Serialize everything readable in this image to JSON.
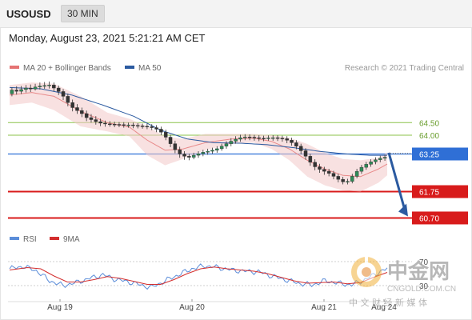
{
  "header": {
    "symbol": "USOUSD",
    "timeframe": "30 MIN"
  },
  "subheader": {
    "datetime": "Monday, August 23, 2021 5:21:21 AM CET"
  },
  "legend": {
    "bollinger": {
      "label": "MA 20 + Bollinger Bands",
      "color": "#e57373"
    },
    "ma50": {
      "label": "MA 50",
      "color": "#2b5aa0"
    },
    "credit": "Research © 2021 Trading Central"
  },
  "rsi_legend": {
    "rsi": {
      "label": "RSI",
      "color": "#5b8dd9"
    },
    "ma9": {
      "label": "9MA",
      "color": "#d32f2f"
    }
  },
  "watermark": {
    "name": "中金网",
    "url": "CNGOLD.COM.CN",
    "tagline": "中 文 财 经 新 媒 体"
  },
  "chart_data": {
    "type": "candlestick",
    "symbol": "USOUSD",
    "timeframe": "30 MIN",
    "x_labels": [
      "Aug 19",
      "Aug 20",
      "Aug 21",
      "Aug 24"
    ],
    "ylim": [
      60.3,
      66.2
    ],
    "levels": [
      {
        "value": 64.5,
        "label": "64.50",
        "kind": "resistance",
        "color": "#8bc34a"
      },
      {
        "value": 64.0,
        "label": "64.00",
        "kind": "resistance",
        "color": "#8bc34a"
      },
      {
        "value": 63.25,
        "label": "63.25",
        "kind": "pivot",
        "color": "#2f6fd6"
      },
      {
        "value": 61.75,
        "label": "61.75",
        "kind": "support",
        "color": "#d81b1b"
      },
      {
        "value": 60.7,
        "label": "60.70",
        "kind": "support",
        "color": "#d81b1b"
      }
    ],
    "price_anchors": [
      [
        0,
        65.8
      ],
      [
        5,
        65.75
      ],
      [
        10,
        65.9
      ],
      [
        14,
        66.0
      ],
      [
        19,
        65.7
      ],
      [
        24,
        65.1
      ],
      [
        31,
        64.6
      ],
      [
        38,
        64.45
      ],
      [
        44,
        64.4
      ],
      [
        49,
        64.35
      ],
      [
        54,
        64.2
      ],
      [
        59,
        63.4
      ],
      [
        64,
        63.1
      ],
      [
        70,
        63.35
      ],
      [
        76,
        63.4
      ],
      [
        82,
        63.6
      ],
      [
        86,
        63.8
      ],
      [
        92,
        63.95
      ],
      [
        100,
        63.85
      ],
      [
        106,
        63.9
      ],
      [
        112,
        63.85
      ],
      [
        118,
        63.7
      ],
      [
        124,
        63.45
      ],
      [
        128,
        63.2
      ],
      [
        134,
        62.8
      ],
      [
        140,
        62.6
      ],
      [
        146,
        62.45
      ],
      [
        150,
        62.25
      ],
      [
        154,
        62.1
      ],
      [
        158,
        62.45
      ],
      [
        162,
        62.7
      ],
      [
        166,
        62.9
      ],
      [
        170,
        63.1
      ]
    ],
    "candles": [
      [
        65.65,
        65.8,
        65.9,
        65.55
      ],
      [
        65.8,
        65.75,
        65.95,
        65.62
      ],
      [
        65.75,
        65.82,
        65.96,
        65.64
      ],
      [
        65.82,
        65.88,
        66.0,
        65.7
      ],
      [
        65.88,
        65.84,
        66.02,
        65.72
      ],
      [
        65.84,
        65.92,
        66.05,
        65.78
      ],
      [
        65.92,
        65.96,
        66.1,
        65.82
      ],
      [
        65.96,
        65.98,
        66.12,
        65.85
      ],
      [
        65.98,
        66.0,
        66.14,
        65.86
      ],
      [
        66.0,
        65.88,
        66.1,
        65.75
      ],
      [
        65.88,
        65.74,
        65.98,
        65.6
      ],
      [
        65.74,
        65.55,
        65.84,
        65.4
      ],
      [
        65.55,
        65.3,
        65.66,
        65.15
      ],
      [
        65.3,
        65.1,
        65.42,
        64.95
      ],
      [
        65.1,
        64.98,
        65.24,
        64.85
      ],
      [
        64.98,
        64.86,
        65.1,
        64.72
      ],
      [
        64.86,
        64.7,
        64.98,
        64.56
      ],
      [
        64.7,
        64.62,
        64.84,
        64.5
      ],
      [
        64.62,
        64.54,
        64.76,
        64.42
      ],
      [
        64.54,
        64.48,
        64.66,
        64.36
      ],
      [
        64.48,
        64.45,
        64.58,
        64.34
      ],
      [
        64.45,
        64.44,
        64.56,
        64.34
      ],
      [
        64.44,
        64.43,
        64.54,
        64.32
      ],
      [
        64.43,
        64.42,
        64.52,
        64.32
      ],
      [
        64.42,
        64.4,
        64.52,
        64.3
      ],
      [
        64.4,
        64.41,
        64.5,
        64.3
      ],
      [
        64.41,
        64.39,
        64.5,
        64.28
      ],
      [
        64.39,
        64.37,
        64.48,
        64.27
      ],
      [
        64.37,
        64.36,
        64.46,
        64.26
      ],
      [
        64.36,
        64.34,
        64.46,
        64.24
      ],
      [
        64.34,
        64.3,
        64.44,
        64.2
      ],
      [
        64.3,
        64.24,
        64.4,
        64.12
      ],
      [
        64.24,
        64.12,
        64.34,
        64.0
      ],
      [
        64.12,
        63.92,
        64.22,
        63.8
      ],
      [
        63.92,
        63.66,
        64.02,
        63.52
      ],
      [
        63.66,
        63.42,
        63.78,
        63.28
      ],
      [
        63.42,
        63.25,
        63.54,
        63.1
      ],
      [
        63.25,
        63.16,
        63.36,
        63.02
      ],
      [
        63.16,
        63.12,
        63.26,
        63.0
      ],
      [
        63.12,
        63.2,
        63.3,
        63.04
      ],
      [
        63.2,
        63.26,
        63.36,
        63.1
      ],
      [
        63.26,
        63.32,
        63.42,
        63.16
      ],
      [
        63.32,
        63.36,
        63.46,
        63.22
      ],
      [
        63.36,
        63.4,
        63.5,
        63.26
      ],
      [
        63.4,
        63.46,
        63.56,
        63.3
      ],
      [
        63.46,
        63.56,
        63.66,
        63.38
      ],
      [
        63.56,
        63.66,
        63.76,
        63.46
      ],
      [
        63.66,
        63.76,
        63.88,
        63.56
      ],
      [
        63.76,
        63.84,
        63.96,
        63.66
      ],
      [
        63.84,
        63.9,
        64.02,
        63.74
      ],
      [
        63.9,
        63.93,
        64.04,
        63.8
      ],
      [
        63.93,
        63.92,
        64.03,
        63.8
      ],
      [
        63.92,
        63.9,
        64.01,
        63.78
      ],
      [
        63.9,
        63.88,
        64.0,
        63.76
      ],
      [
        63.88,
        63.87,
        63.98,
        63.76
      ],
      [
        63.87,
        63.89,
        63.99,
        63.78
      ],
      [
        63.89,
        63.9,
        64.0,
        63.78
      ],
      [
        63.9,
        63.88,
        64.0,
        63.77
      ],
      [
        63.88,
        63.86,
        63.98,
        63.74
      ],
      [
        63.86,
        63.8,
        63.96,
        63.68
      ],
      [
        63.8,
        63.7,
        63.9,
        63.58
      ],
      [
        63.7,
        63.56,
        63.8,
        63.44
      ],
      [
        63.56,
        63.38,
        63.66,
        63.24
      ],
      [
        63.38,
        63.16,
        63.48,
        63.02
      ],
      [
        63.16,
        62.92,
        63.26,
        62.78
      ],
      [
        62.92,
        62.74,
        63.04,
        62.6
      ],
      [
        62.74,
        62.64,
        62.86,
        62.5
      ],
      [
        62.64,
        62.56,
        62.74,
        62.42
      ],
      [
        62.56,
        62.48,
        62.66,
        62.36
      ],
      [
        62.48,
        62.36,
        62.58,
        62.24
      ],
      [
        62.36,
        62.24,
        62.46,
        62.12
      ],
      [
        62.24,
        62.14,
        62.34,
        62.04
      ],
      [
        62.14,
        62.16,
        62.26,
        62.04
      ],
      [
        62.16,
        62.36,
        62.46,
        62.08
      ],
      [
        62.36,
        62.56,
        62.66,
        62.28
      ],
      [
        62.56,
        62.72,
        62.82,
        62.46
      ],
      [
        62.72,
        62.84,
        62.94,
        62.62
      ],
      [
        62.84,
        62.94,
        63.04,
        62.74
      ],
      [
        62.94,
        63.02,
        63.12,
        62.84
      ],
      [
        63.02,
        63.08,
        63.18,
        62.92
      ],
      [
        63.08,
        63.12,
        63.22,
        62.98
      ]
    ],
    "bollinger": {
      "mid_anchors": [
        [
          0,
          65.6
        ],
        [
          10,
          65.7
        ],
        [
          20,
          65.55
        ],
        [
          32,
          64.95
        ],
        [
          44,
          64.5
        ],
        [
          54,
          64.32
        ],
        [
          62,
          63.8
        ],
        [
          70,
          63.4
        ],
        [
          78,
          63.45
        ],
        [
          88,
          63.7
        ],
        [
          100,
          63.85
        ],
        [
          110,
          63.88
        ],
        [
          118,
          63.75
        ],
        [
          126,
          63.45
        ],
        [
          134,
          63.0
        ],
        [
          142,
          62.65
        ],
        [
          150,
          62.4
        ],
        [
          158,
          62.35
        ],
        [
          166,
          62.65
        ],
        [
          170,
          62.85
        ]
      ],
      "upper_anchors": [
        [
          0,
          66.0
        ],
        [
          10,
          66.1
        ],
        [
          20,
          66.05
        ],
        [
          32,
          65.55
        ],
        [
          44,
          64.9
        ],
        [
          54,
          64.65
        ],
        [
          62,
          64.35
        ],
        [
          70,
          63.95
        ],
        [
          78,
          63.85
        ],
        [
          88,
          64.05
        ],
        [
          100,
          64.05
        ],
        [
          110,
          64.05
        ],
        [
          118,
          64.0
        ],
        [
          126,
          63.9
        ],
        [
          134,
          63.65
        ],
        [
          142,
          63.3
        ],
        [
          150,
          63.05
        ],
        [
          158,
          63.0
        ],
        [
          166,
          63.1
        ],
        [
          170,
          63.3
        ]
      ],
      "lower_anchors": [
        [
          0,
          65.2
        ],
        [
          10,
          65.3
        ],
        [
          20,
          65.0
        ],
        [
          32,
          64.35
        ],
        [
          44,
          64.15
        ],
        [
          54,
          63.95
        ],
        [
          62,
          63.2
        ],
        [
          70,
          62.8
        ],
        [
          78,
          63.05
        ],
        [
          88,
          63.4
        ],
        [
          100,
          63.65
        ],
        [
          110,
          63.7
        ],
        [
          118,
          63.45
        ],
        [
          126,
          63.0
        ],
        [
          134,
          62.35
        ],
        [
          142,
          62.0
        ],
        [
          150,
          61.8
        ],
        [
          158,
          61.75
        ],
        [
          166,
          62.1
        ],
        [
          170,
          62.4
        ]
      ]
    },
    "ma50_anchors": [
      [
        0,
        65.9
      ],
      [
        14,
        65.85
      ],
      [
        28,
        65.6
      ],
      [
        42,
        65.2
      ],
      [
        56,
        64.75
      ],
      [
        68,
        64.2
      ],
      [
        80,
        63.85
      ],
      [
        92,
        63.7
      ],
      [
        104,
        63.68
      ],
      [
        116,
        63.62
      ],
      [
        128,
        63.5
      ],
      [
        140,
        63.35
      ],
      [
        152,
        63.25
      ],
      [
        162,
        63.2
      ],
      [
        170,
        63.2
      ]
    ],
    "projection": {
      "from": 63.3,
      "to": 60.7,
      "color": "#2b5aa0"
    },
    "rsi": {
      "ylim": [
        10,
        90
      ],
      "reference_levels": [
        30,
        70
      ],
      "rsi_anchors": [
        [
          0,
          58
        ],
        [
          6,
          62
        ],
        [
          12,
          55
        ],
        [
          18,
          38
        ],
        [
          24,
          30
        ],
        [
          30,
          35
        ],
        [
          36,
          42
        ],
        [
          42,
          48
        ],
        [
          48,
          40
        ],
        [
          54,
          36
        ],
        [
          60,
          30
        ],
        [
          64,
          27
        ],
        [
          70,
          38
        ],
        [
          76,
          48
        ],
        [
          82,
          58
        ],
        [
          88,
          63
        ],
        [
          94,
          60
        ],
        [
          100,
          56
        ],
        [
          106,
          54
        ],
        [
          112,
          53
        ],
        [
          118,
          46
        ],
        [
          124,
          40
        ],
        [
          130,
          34
        ],
        [
          136,
          31
        ],
        [
          142,
          38
        ],
        [
          148,
          34
        ],
        [
          154,
          31
        ],
        [
          160,
          40
        ],
        [
          166,
          52
        ],
        [
          170,
          58
        ]
      ],
      "ma9_anchors": [
        [
          0,
          56
        ],
        [
          8,
          60
        ],
        [
          14,
          58
        ],
        [
          20,
          46
        ],
        [
          26,
          36
        ],
        [
          32,
          36
        ],
        [
          38,
          40
        ],
        [
          44,
          45
        ],
        [
          50,
          42
        ],
        [
          56,
          37
        ],
        [
          62,
          32
        ],
        [
          68,
          32
        ],
        [
          74,
          40
        ],
        [
          80,
          50
        ],
        [
          86,
          58
        ],
        [
          92,
          61
        ],
        [
          98,
          58
        ],
        [
          104,
          56
        ],
        [
          110,
          54
        ],
        [
          116,
          50
        ],
        [
          122,
          44
        ],
        [
          128,
          38
        ],
        [
          134,
          34
        ],
        [
          140,
          35
        ],
        [
          146,
          36
        ],
        [
          152,
          33
        ],
        [
          158,
          35
        ],
        [
          164,
          44
        ],
        [
          170,
          52
        ]
      ]
    }
  }
}
